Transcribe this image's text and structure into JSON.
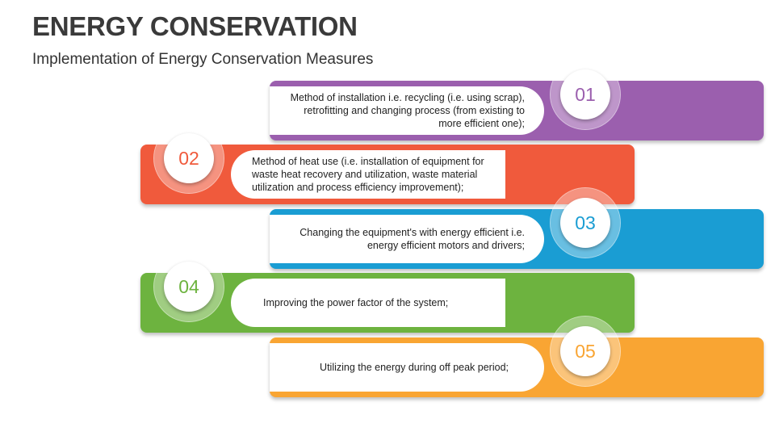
{
  "header": {
    "title": "ENERGY CONSERVATION",
    "subtitle": "Implementation of Energy Conservation Measures"
  },
  "steps": [
    {
      "number": "01",
      "text": "Method of installation i.e. recycling (i.e. using scrap), retrofitting and changing process (from existing to more efficient one);",
      "color": "#9B5FAE"
    },
    {
      "number": "02",
      "text": "Method of heat use (i.e. installation of equipment for waste heat recovery and utilization, waste material utilization and process efficiency improvement);",
      "color": "#F05A3C"
    },
    {
      "number": "03",
      "text": "Changing the equipment's with energy efficient i.e. energy efficient motors and drivers;",
      "color": "#1A9DD3"
    },
    {
      "number": "04",
      "text": "Improving the power factor of the system;",
      "color": "#6DB33F"
    },
    {
      "number": "05",
      "text": "Utilizing the energy during off peak period;",
      "color": "#F9A533"
    }
  ]
}
